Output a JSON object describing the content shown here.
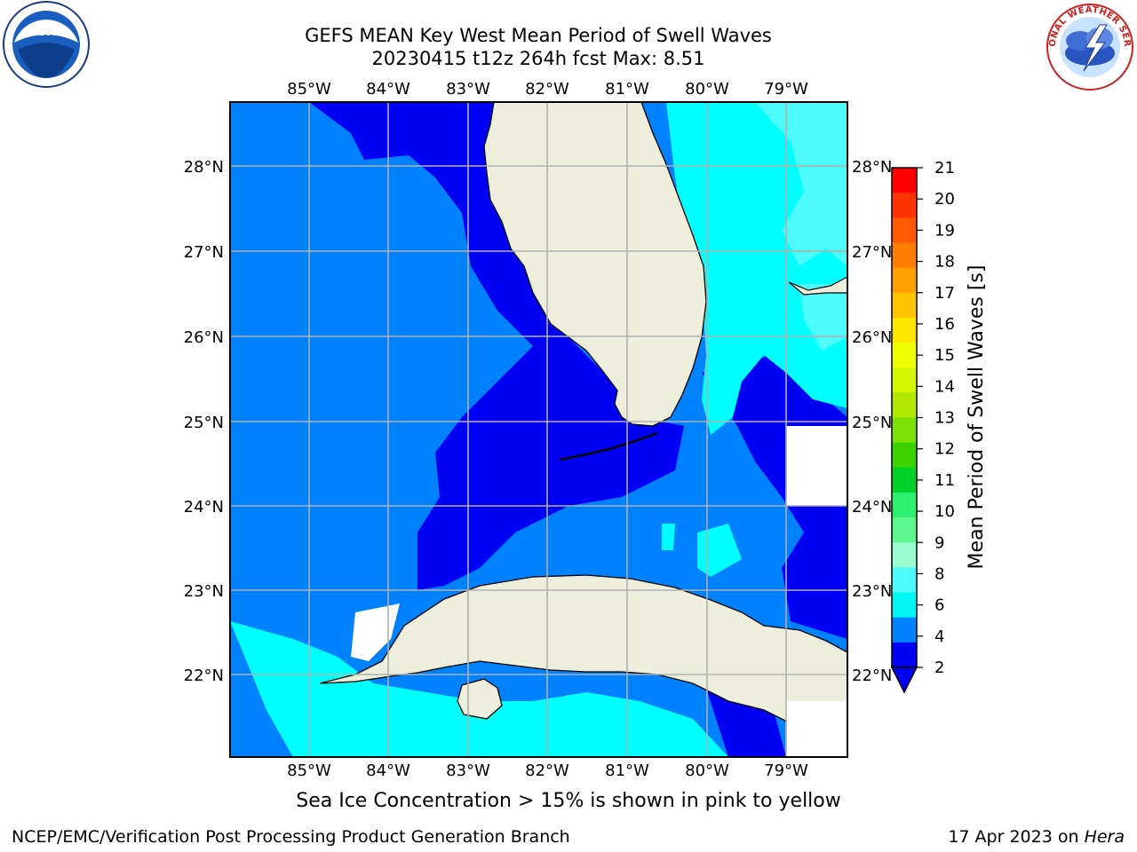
{
  "title_line1": "GEFS MEAN Key West Mean Period of Swell Waves",
  "title_line2": "20230415 t12z 264h fcst   Max: 8.51",
  "lon_labels": [
    "85°W",
    "84°W",
    "83°W",
    "82°W",
    "81°W",
    "80°W",
    "79°W"
  ],
  "lat_labels": [
    "28°N",
    "27°N",
    "26°N",
    "25°N",
    "24°N",
    "23°N",
    "22°N"
  ],
  "colorbar": {
    "label": "Mean Period of Swell Waves [s]",
    "ticks": [
      "21",
      "20",
      "19",
      "18",
      "17",
      "16",
      "15",
      "14",
      "13",
      "12",
      "11",
      "10",
      "9",
      "8",
      "6",
      "4",
      "2"
    ],
    "colors": [
      "#ff0000",
      "#ff3300",
      "#ff5a00",
      "#ff7d00",
      "#ffa000",
      "#ffc300",
      "#ffe600",
      "#f0ff00",
      "#d2f500",
      "#b0e800",
      "#7ee000",
      "#3cd200",
      "#00d22a",
      "#2ef070",
      "#5cf88f",
      "#9bfbd0",
      "#4dfbfb",
      "#00f5f5",
      "#0082ff",
      "#0000f2"
    ],
    "under_color": "#0000f2"
  },
  "logos": {
    "left": "NOAA",
    "right": "NATIONAL WEATHER SERVICE"
  },
  "colors": {
    "land": "#eeeedd",
    "sea_dark": "#0000f2",
    "sea_mid": "#0082ff",
    "sea_light": "#00ffff",
    "sea_pale": "#4dfbfb",
    "grid": "#b0b0b0"
  },
  "footer": {
    "sea_ice": "Sea Ice Concentration > 15% is shown in pink to yellow",
    "branch": "NCEP/EMC/Verification Post Processing Product Generation Branch",
    "date": "17 Apr 2023 on",
    "host": "Hera"
  }
}
